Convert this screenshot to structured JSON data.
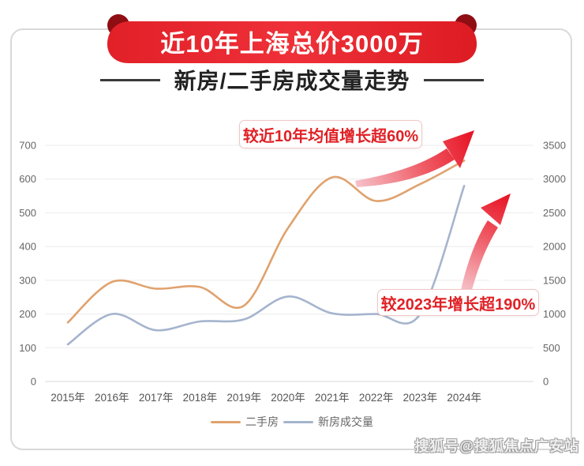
{
  "header": {
    "ribbon_title": "近10年上海总价3000万",
    "subtitle": "新房/二手房成交量走势"
  },
  "annotations": [
    {
      "text": "较近10年均值增长超60%"
    },
    {
      "text": "较2023年增长超190%"
    }
  ],
  "watermark": "搜狐号@搜狐焦点广安站",
  "colors": {
    "ribbon_red": "#e8212a",
    "ribbon_fold": "#8e0e14",
    "secondhand_line": "#e0a26e",
    "newhome_line": "#a5b4ce",
    "annotation_red": "#e02126",
    "annotation_border": "#f2c6c6",
    "grid": "#ececec",
    "axis_text": "#666666"
  },
  "chart_data": {
    "type": "line",
    "categories": [
      "2015年",
      "2016年",
      "2017年",
      "2018年",
      "2019年",
      "2020年",
      "2021年",
      "2022年",
      "2023年",
      "2024年"
    ],
    "series": [
      {
        "name": "二手房",
        "axis": "left",
        "color": "#e0a26e",
        "values": [
          175,
          295,
          275,
          280,
          225,
          455,
          605,
          535,
          585,
          655
        ]
      },
      {
        "name": "新房成交量",
        "axis": "right",
        "color": "#a5b4ce",
        "values": [
          550,
          1000,
          760,
          890,
          920,
          1260,
          1010,
          1000,
          1000,
          2900
        ]
      }
    ],
    "left_axis": {
      "min": 0,
      "max": 700,
      "step": 100
    },
    "right_axis": {
      "min": 0,
      "max": 3500,
      "step": 500
    },
    "grid": true,
    "legend_position": "bottom",
    "smooth": true
  }
}
